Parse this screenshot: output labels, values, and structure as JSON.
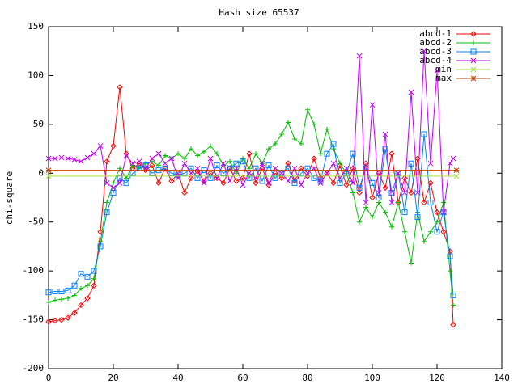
{
  "chart_data": {
    "type": "line",
    "title": "Hash size 65537",
    "y_label": "chi-square",
    "x": [
      0,
      2,
      4,
      6,
      8,
      10,
      12,
      14,
      16,
      18,
      20,
      22,
      24,
      26,
      28,
      30,
      32,
      34,
      36,
      38,
      40,
      42,
      44,
      46,
      48,
      50,
      52,
      54,
      56,
      58,
      60,
      62,
      64,
      66,
      68,
      70,
      72,
      74,
      76,
      78,
      80,
      82,
      84,
      86,
      88,
      90,
      92,
      94,
      96,
      98,
      100,
      102,
      104,
      106,
      108,
      110,
      112,
      114,
      116,
      118,
      120,
      122,
      124,
      125
    ],
    "xlim": [
      0,
      140
    ],
    "xticks": [
      0,
      20,
      40,
      60,
      80,
      100,
      120,
      140
    ],
    "ylim": [
      -200,
      150
    ],
    "yticks": [
      -200,
      -150,
      -100,
      -50,
      0,
      50,
      100,
      150
    ],
    "legend": "top-right",
    "series": [
      {
        "name": "abcd-1",
        "color": "#ff0000",
        "marker": "diamond",
        "values": [
          -152,
          -151,
          -150,
          -148,
          -143,
          -135,
          -128,
          -115,
          -60,
          12,
          28,
          88,
          20,
          5,
          10,
          3,
          8,
          -10,
          5,
          -8,
          0,
          -20,
          -5,
          2,
          -8,
          0,
          -5,
          -10,
          5,
          -8,
          -5,
          20,
          -10,
          5,
          -12,
          0,
          -5,
          10,
          -8,
          5,
          -3,
          15,
          -5,
          0,
          -10,
          8,
          -12,
          5,
          -20,
          10,
          -25,
          0,
          -15,
          20,
          -30,
          -5,
          -20,
          15,
          -30,
          -10,
          -40,
          -60,
          -80,
          -155
        ]
      },
      {
        "name": "abcd-2",
        "color": "#00c000",
        "marker": "plus",
        "values": [
          -132,
          -130,
          -129,
          -128,
          -125,
          -118,
          -115,
          -108,
          -70,
          -30,
          -10,
          5,
          -5,
          8,
          5,
          10,
          12,
          8,
          18,
          15,
          20,
          15,
          25,
          18,
          22,
          28,
          20,
          8,
          12,
          0,
          15,
          5,
          20,
          10,
          25,
          30,
          40,
          52,
          35,
          30,
          65,
          50,
          20,
          45,
          25,
          10,
          0,
          -20,
          -50,
          -35,
          -45,
          -30,
          -40,
          -55,
          -30,
          -60,
          -92,
          -40,
          -70,
          -60,
          -50,
          -30,
          -100,
          -135
        ]
      },
      {
        "name": "abcd-3",
        "color": "#0080ff",
        "marker": "square",
        "values": [
          -122,
          -121,
          -121,
          -120,
          -115,
          -103,
          -106,
          -100,
          -75,
          -40,
          -20,
          -5,
          -10,
          0,
          5,
          8,
          0,
          3,
          5,
          0,
          -2,
          0,
          5,
          -5,
          3,
          -5,
          8,
          0,
          5,
          10,
          12,
          -5,
          5,
          -8,
          8,
          -5,
          0,
          5,
          -10,
          0,
          5,
          -5,
          -8,
          20,
          30,
          -10,
          0,
          20,
          -15,
          5,
          -10,
          -25,
          25,
          -20,
          0,
          -40,
          10,
          -45,
          40,
          -30,
          -60,
          -40,
          -85,
          -125
        ]
      },
      {
        "name": "abcd-4",
        "color": "#c000ff",
        "marker": "cross",
        "values": [
          15,
          15,
          16,
          15,
          14,
          12,
          16,
          20,
          28,
          -10,
          -15,
          -10,
          18,
          10,
          12,
          5,
          15,
          20,
          10,
          15,
          -5,
          10,
          0,
          5,
          -10,
          15,
          -5,
          10,
          -8,
          5,
          -12,
          0,
          -5,
          10,
          -10,
          5,
          0,
          -8,
          5,
          -12,
          0,
          5,
          -10,
          0,
          10,
          -5,
          5,
          -10,
          120,
          -30,
          70,
          -20,
          40,
          -30,
          0,
          -20,
          83,
          -20,
          125,
          10,
          105,
          -40,
          10,
          15
        ]
      },
      {
        "name": "min",
        "color": "#a0e040",
        "marker": "cross",
        "x": [
          0,
          126
        ],
        "values": [
          -3,
          -3
        ]
      },
      {
        "name": "max",
        "color": "#c04000",
        "marker": "star",
        "x": [
          0,
          126
        ],
        "values": [
          3,
          3
        ]
      }
    ]
  }
}
